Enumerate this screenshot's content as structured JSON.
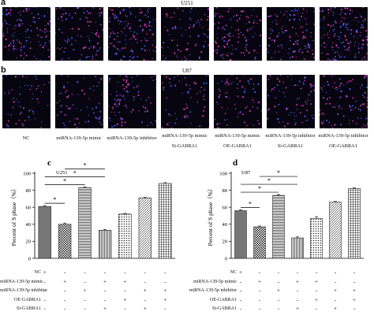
{
  "panels": {
    "a": {
      "letter": "a",
      "cell_line": "U251"
    },
    "b": {
      "letter": "b",
      "cell_line": "U87"
    }
  },
  "conditions": [
    {
      "line1": "NC",
      "line2": ""
    },
    {
      "line1": "miRNA-139-5p mimic",
      "line2": ""
    },
    {
      "line1": "miRNA-139-5p inhibitor",
      "line2": ""
    },
    {
      "line1": "miRNA-139-5p mimic",
      "line2": "Si-GABRA1"
    },
    {
      "line1": "miRNA-139-5p mimic",
      "line2": "OE-GABRA1"
    },
    {
      "line1": "miRNA-139-5p inhibitor",
      "line2": "Si-GABRA1"
    },
    {
      "line1": "miRNA-139-5p inhibitor",
      "line2": "OE-GABRA1"
    }
  ],
  "table_rows": [
    "NC",
    "miRNA-139-5p mimic",
    "miRNA-139-5p inhibitor",
    "OE-GABRA1",
    "Si-GABRA1"
  ],
  "table_matrix": [
    [
      "+",
      "-",
      "-",
      "-",
      "-",
      "-",
      "-"
    ],
    [
      "-",
      "+",
      "-",
      "+",
      "+",
      "-",
      "-"
    ],
    [
      "-",
      "-",
      "+",
      "-",
      "-",
      "+",
      "+"
    ],
    [
      "-",
      "-",
      "-",
      "-",
      "+",
      "-",
      "+"
    ],
    [
      "-",
      "-",
      "-",
      "+",
      "-",
      "+",
      "-"
    ]
  ],
  "chart_data": [
    {
      "panel": "c",
      "type": "bar",
      "title": "U251",
      "ylabel": "Percent of S phase（%）",
      "ylim": [
        0,
        100
      ],
      "yticks": [
        "0",
        "20",
        "40",
        "60",
        "80",
        "100"
      ],
      "values": [
        61,
        40,
        83,
        33,
        52,
        71,
        88
      ],
      "errors": [
        1.0,
        1.5,
        1.2,
        0.8,
        0.8,
        0.8,
        1.0
      ],
      "significance": [
        "*",
        "*",
        "*",
        "*"
      ]
    },
    {
      "panel": "d",
      "type": "bar",
      "title": "U87",
      "ylabel": "Percent of S phase（%）",
      "ylim": [
        0,
        100
      ],
      "yticks": [
        "0",
        "20",
        "40",
        "60",
        "80",
        "100"
      ],
      "values": [
        56,
        37,
        74,
        24,
        47,
        66,
        82
      ],
      "errors": [
        1.2,
        1.0,
        1.0,
        1.2,
        2.0,
        0.8,
        1.0
      ],
      "significance": [
        "*",
        "*",
        "*",
        "*"
      ]
    }
  ]
}
